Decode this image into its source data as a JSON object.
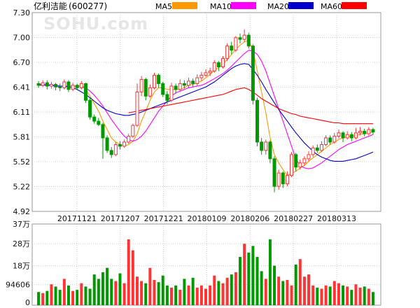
{
  "header": {
    "stock_name": "亿利洁能",
    "stock_code": "(600277)",
    "watermark": "SOHU.com"
  },
  "legend": [
    {
      "label": "MA5",
      "color": "#ff9900"
    },
    {
      "label": "MA10",
      "color": "#ff00ff"
    },
    {
      "label": "MA20",
      "color": "#0000cc"
    },
    {
      "label": "MA60",
      "color": "#ff0000"
    }
  ],
  "colors": {
    "up": "#ff3333",
    "down": "#009900",
    "grid": "#cccccc"
  },
  "chart_data": [
    {
      "type": "candlestick",
      "title": "亿利洁能(600277)",
      "ylim": [
        4.92,
        7.3
      ],
      "y_ticks": [
        "7.30",
        "7.00",
        "6.70",
        "6.41",
        "6.11",
        "5.81",
        "5.52",
        "5.22",
        "4.92"
      ],
      "x_ticks": [
        "20171121",
        "20171207",
        "20171221",
        "20180109",
        "20180206",
        "20180227",
        "20180313"
      ],
      "grid": true,
      "candles": [
        [
          6.45,
          6.43,
          6.48,
          6.4
        ],
        [
          6.43,
          6.46,
          6.49,
          6.41
        ],
        [
          6.46,
          6.42,
          6.49,
          6.38
        ],
        [
          6.42,
          6.44,
          6.47,
          6.39
        ],
        [
          6.44,
          6.41,
          6.46,
          6.37
        ],
        [
          6.41,
          6.4,
          6.45,
          6.36
        ],
        [
          6.4,
          6.47,
          6.5,
          6.38
        ],
        [
          6.47,
          6.38,
          6.49,
          6.35
        ],
        [
          6.38,
          6.43,
          6.46,
          6.36
        ],
        [
          6.43,
          6.4,
          6.45,
          6.37
        ],
        [
          6.4,
          6.45,
          6.48,
          6.38
        ],
        [
          6.45,
          6.25,
          6.46,
          6.22
        ],
        [
          6.25,
          6.05,
          6.28,
          6.02
        ],
        [
          6.05,
          6.0,
          6.08,
          5.97
        ],
        [
          6.0,
          5.96,
          6.04,
          5.94
        ],
        [
          5.96,
          5.8,
          5.98,
          5.55
        ],
        [
          5.8,
          5.65,
          5.83,
          5.62
        ],
        [
          5.65,
          5.6,
          5.69,
          5.56
        ],
        [
          5.6,
          5.72,
          5.75,
          5.58
        ],
        [
          5.72,
          5.7,
          5.76,
          5.66
        ],
        [
          5.7,
          5.75,
          5.78,
          5.68
        ],
        [
          5.75,
          5.82,
          5.85,
          5.73
        ],
        [
          5.82,
          5.95,
          5.97,
          5.8
        ],
        [
          5.95,
          6.35,
          6.45,
          5.93
        ],
        [
          6.35,
          6.5,
          6.54,
          6.3
        ],
        [
          6.5,
          6.3,
          6.52,
          6.25
        ],
        [
          6.3,
          6.4,
          6.44,
          6.28
        ],
        [
          6.4,
          6.55,
          6.58,
          6.38
        ],
        [
          6.55,
          6.45,
          6.57,
          6.4
        ],
        [
          6.45,
          6.32,
          6.47,
          6.29
        ],
        [
          6.32,
          6.25,
          6.36,
          6.2
        ],
        [
          6.25,
          6.42,
          6.46,
          6.23
        ],
        [
          6.42,
          6.38,
          6.45,
          6.33
        ],
        [
          6.38,
          6.45,
          6.5,
          6.35
        ],
        [
          6.45,
          6.43,
          6.49,
          6.39
        ],
        [
          6.43,
          6.48,
          6.52,
          6.4
        ],
        [
          6.48,
          6.45,
          6.51,
          6.41
        ],
        [
          6.45,
          6.52,
          6.56,
          6.42
        ],
        [
          6.52,
          6.55,
          6.59,
          6.48
        ],
        [
          6.55,
          6.58,
          6.62,
          6.53
        ],
        [
          6.58,
          6.6,
          6.64,
          6.54
        ],
        [
          6.6,
          6.7,
          6.73,
          6.58
        ],
        [
          6.7,
          6.65,
          6.72,
          6.6
        ],
        [
          6.65,
          6.75,
          6.78,
          6.63
        ],
        [
          6.75,
          6.9,
          6.93,
          6.72
        ],
        [
          6.9,
          6.85,
          6.95,
          6.8
        ],
        [
          6.85,
          7.0,
          7.02,
          6.83
        ],
        [
          7.0,
          6.98,
          7.05,
          6.93
        ],
        [
          6.98,
          7.03,
          7.1,
          6.95
        ],
        [
          7.03,
          6.9,
          7.06,
          6.87
        ],
        [
          6.9,
          6.25,
          6.92,
          6.2
        ],
        [
          6.25,
          5.75,
          6.28,
          5.7
        ],
        [
          5.75,
          5.65,
          5.8,
          5.6
        ],
        [
          5.65,
          5.75,
          5.78,
          5.6
        ],
        [
          5.75,
          5.55,
          5.77,
          5.5
        ],
        [
          5.55,
          5.22,
          5.58,
          5.15
        ],
        [
          5.22,
          5.38,
          5.42,
          5.18
        ],
        [
          5.38,
          5.25,
          5.4,
          5.2
        ],
        [
          5.25,
          5.35,
          5.4,
          5.22
        ],
        [
          5.35,
          5.6,
          5.63,
          5.33
        ],
        [
          5.6,
          5.45,
          5.62,
          5.4
        ],
        [
          5.45,
          5.5,
          5.54,
          5.42
        ],
        [
          5.5,
          5.55,
          5.58,
          5.47
        ],
        [
          5.55,
          5.6,
          5.64,
          5.52
        ],
        [
          5.6,
          5.68,
          5.71,
          5.57
        ],
        [
          5.68,
          5.65,
          5.72,
          5.62
        ],
        [
          5.65,
          5.72,
          5.76,
          5.63
        ],
        [
          5.72,
          5.8,
          5.83,
          5.7
        ],
        [
          5.8,
          5.75,
          5.83,
          5.72
        ],
        [
          5.75,
          5.82,
          5.86,
          5.73
        ],
        [
          5.82,
          5.86,
          5.9,
          5.79
        ],
        [
          5.86,
          5.8,
          5.88,
          5.75
        ],
        [
          5.8,
          5.84,
          5.88,
          5.78
        ],
        [
          5.84,
          5.8,
          5.87,
          5.76
        ],
        [
          5.8,
          5.86,
          5.92,
          5.78
        ],
        [
          5.86,
          5.88,
          5.93,
          5.83
        ],
        [
          5.88,
          5.85,
          5.91,
          5.82
        ],
        [
          5.85,
          5.9,
          5.93,
          5.83
        ],
        [
          5.9,
          5.87,
          5.92,
          5.84
        ]
      ],
      "ma_series": [
        {
          "name": "MA5",
          "color": "#ff9900",
          "values": [
            6.45,
            6.44,
            6.43,
            6.43,
            6.42,
            6.42,
            6.42,
            6.42,
            6.42,
            6.42,
            6.42,
            6.38,
            6.3,
            6.21,
            6.12,
            6.0,
            5.9,
            5.8,
            5.75,
            5.72,
            5.7,
            5.72,
            5.76,
            5.85,
            6.0,
            6.12,
            6.25,
            6.35,
            6.4,
            6.4,
            6.38,
            6.38,
            6.38,
            6.38,
            6.4,
            6.43,
            6.44,
            6.46,
            6.48,
            6.52,
            6.56,
            6.61,
            6.64,
            6.68,
            6.74,
            6.8,
            6.86,
            6.91,
            6.95,
            6.97,
            6.85,
            6.6,
            6.35,
            6.1,
            5.8,
            5.6,
            5.5,
            5.42,
            5.35,
            5.38,
            5.4,
            5.44,
            5.47,
            5.52,
            5.56,
            5.6,
            5.64,
            5.68,
            5.72,
            5.75,
            5.78,
            5.8,
            5.82,
            5.82,
            5.83,
            5.84,
            5.85,
            5.86,
            5.87
          ]
        },
        {
          "name": "MA10",
          "color": "#ff00ff",
          "values": [
            6.44,
            6.44,
            6.44,
            6.43,
            6.43,
            6.42,
            6.42,
            6.42,
            6.42,
            6.42,
            6.42,
            6.4,
            6.36,
            6.31,
            6.25,
            6.18,
            6.1,
            6.02,
            5.95,
            5.88,
            5.82,
            5.78,
            5.76,
            5.78,
            5.82,
            5.88,
            5.96,
            6.04,
            6.12,
            6.18,
            6.24,
            6.3,
            6.34,
            6.36,
            6.38,
            6.4,
            6.41,
            6.42,
            6.43,
            6.45,
            6.48,
            6.51,
            6.54,
            6.57,
            6.61,
            6.66,
            6.71,
            6.76,
            6.81,
            6.85,
            6.84,
            6.8,
            6.72,
            6.6,
            6.45,
            6.3,
            6.15,
            6.0,
            5.85,
            5.7,
            5.55,
            5.47,
            5.44,
            5.43,
            5.44,
            5.47,
            5.5,
            5.54,
            5.58,
            5.62,
            5.66,
            5.69,
            5.72,
            5.74,
            5.76,
            5.78,
            5.8,
            5.82,
            5.84
          ]
        },
        {
          "name": "MA20",
          "color": "#0000cc",
          "values": [
            6.43,
            6.43,
            6.43,
            6.43,
            6.42,
            6.42,
            6.42,
            6.41,
            6.4,
            6.38,
            6.35,
            6.32,
            6.28,
            6.24,
            6.2,
            6.16,
            6.13,
            6.11,
            6.09,
            6.08,
            6.07,
            6.07,
            6.08,
            6.09,
            6.11,
            6.13,
            6.15,
            6.17,
            6.19,
            6.21,
            6.23,
            6.25,
            6.27,
            6.29,
            6.31,
            6.33,
            6.35,
            6.37,
            6.39,
            6.41,
            6.44,
            6.47,
            6.51,
            6.55,
            6.59,
            6.63,
            6.66,
            6.68,
            6.69,
            6.68,
            6.62,
            6.55,
            6.47,
            6.38,
            6.3,
            6.22,
            6.14,
            6.07,
            6.0,
            5.93,
            5.86,
            5.8,
            5.74,
            5.69,
            5.64,
            5.6,
            5.57,
            5.55,
            5.53,
            5.52,
            5.52,
            5.52,
            5.53,
            5.54,
            5.55,
            5.57,
            5.59,
            5.61,
            5.63
          ]
        },
        {
          "name": "MA60",
          "color": "#ff0000",
          "values": [
            null,
            null,
            null,
            null,
            null,
            null,
            null,
            null,
            null,
            null,
            null,
            null,
            null,
            null,
            null,
            null,
            null,
            null,
            null,
            null,
            null,
            6.1,
            6.11,
            6.12,
            6.13,
            6.14,
            6.15,
            6.16,
            6.17,
            6.18,
            6.19,
            6.2,
            6.21,
            6.22,
            6.23,
            6.24,
            6.25,
            6.26,
            6.27,
            6.28,
            6.29,
            6.3,
            6.31,
            6.32,
            6.34,
            6.36,
            6.38,
            6.39,
            6.4,
            6.38,
            6.35,
            6.31,
            6.27,
            6.24,
            6.21,
            6.18,
            6.15,
            6.13,
            6.11,
            6.09,
            6.08,
            6.06,
            6.05,
            6.04,
            6.03,
            6.02,
            6.01,
            6.0,
            5.99,
            5.98,
            5.98,
            5.97,
            5.97,
            5.97,
            5.97,
            5.97,
            5.97,
            5.97,
            5.97
          ]
        }
      ]
    },
    {
      "type": "bar",
      "title": "",
      "ylim": [
        0,
        370000
      ],
      "y_ticks": [
        "37万",
        "28万",
        "18万",
        "94606",
        "0"
      ],
      "y_tick_values": [
        370000,
        280000,
        180000,
        94606,
        0
      ],
      "values": [
        60000,
        55000,
        65000,
        95000,
        85000,
        70000,
        120000,
        90000,
        65000,
        70000,
        100000,
        85000,
        75000,
        140000,
        120000,
        150000,
        170000,
        120000,
        110000,
        145000,
        100000,
        300000,
        250000,
        130000,
        110000,
        100000,
        170000,
        115000,
        105000,
        135000,
        90000,
        80000,
        90000,
        70000,
        120000,
        90000,
        125000,
        80000,
        90000,
        75000,
        90000,
        135000,
        110000,
        100000,
        125000,
        140000,
        150000,
        220000,
        280000,
        240000,
        270000,
        220000,
        155000,
        120000,
        300000,
        180000,
        130000,
        110000,
        115000,
        90000,
        185000,
        210000,
        130000,
        140000,
        90000,
        80000,
        75000,
        90000,
        85000,
        110000,
        100000,
        90000,
        85000,
        70000,
        95000,
        80000,
        85000,
        75000,
        60000
      ]
    }
  ]
}
